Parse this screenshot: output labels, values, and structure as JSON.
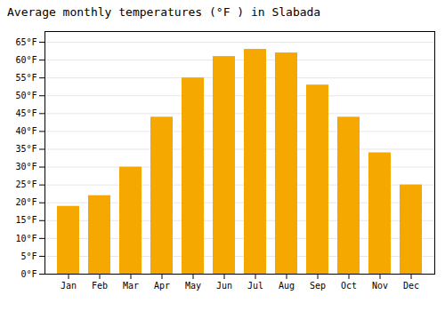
{
  "chart_data": {
    "type": "bar",
    "title": "Average monthly temperatures (°F ) in Slabada",
    "categories": [
      "Jan",
      "Feb",
      "Mar",
      "Apr",
      "May",
      "Jun",
      "Jul",
      "Aug",
      "Sep",
      "Oct",
      "Nov",
      "Dec"
    ],
    "values": [
      19,
      22,
      30,
      44,
      55,
      61,
      63,
      62,
      53,
      44,
      34,
      25
    ],
    "color": "#F5A800",
    "ylim": [
      0,
      68
    ],
    "yticks": [
      {
        "value": 0,
        "label": "0°F"
      },
      {
        "value": 5,
        "label": "5°F"
      },
      {
        "value": 10,
        "label": "10°F"
      },
      {
        "value": 15,
        "label": "15°F"
      },
      {
        "value": 20,
        "label": "20°F"
      },
      {
        "value": 25,
        "label": "25°F"
      },
      {
        "value": 30,
        "label": "30°F"
      },
      {
        "value": 35,
        "label": "35°F"
      },
      {
        "value": 40,
        "label": "40°F"
      },
      {
        "value": 45,
        "label": "45°F"
      },
      {
        "value": 50,
        "label": "50°F"
      },
      {
        "value": 55,
        "label": "55°F"
      },
      {
        "value": 60,
        "label": "60°F"
      },
      {
        "value": 65,
        "label": "65°F"
      }
    ],
    "grid": true
  }
}
